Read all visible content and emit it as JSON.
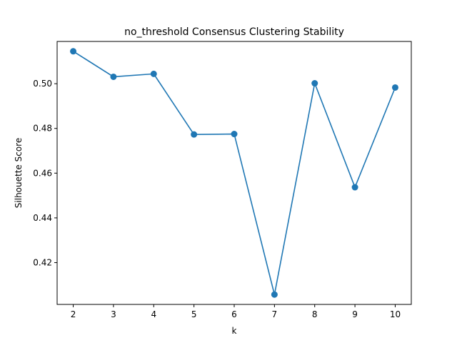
{
  "chart_data": {
    "type": "line",
    "title": "no_threshold Consensus Clustering Stability",
    "xlabel": "k",
    "ylabel": "Silhouette Score",
    "x": [
      2,
      3,
      4,
      5,
      6,
      7,
      8,
      9,
      10
    ],
    "series": [
      {
        "values": [
          0.5145,
          0.5031,
          0.5044,
          0.4773,
          0.4775,
          0.4057,
          0.5002,
          0.4537,
          0.4983
        ],
        "color": "#1f77b4"
      }
    ],
    "xlim": [
      1.6,
      10.4
    ],
    "ylim": [
      0.4013,
      0.5189
    ],
    "xticks": [
      2,
      3,
      4,
      5,
      6,
      7,
      8,
      9,
      10
    ],
    "yticks": [
      0.42,
      0.44,
      0.46,
      0.48,
      0.5
    ],
    "ytick_labels": [
      "0.42",
      "0.44",
      "0.46",
      "0.48",
      "0.50"
    ],
    "grid": false,
    "legend": "none"
  }
}
